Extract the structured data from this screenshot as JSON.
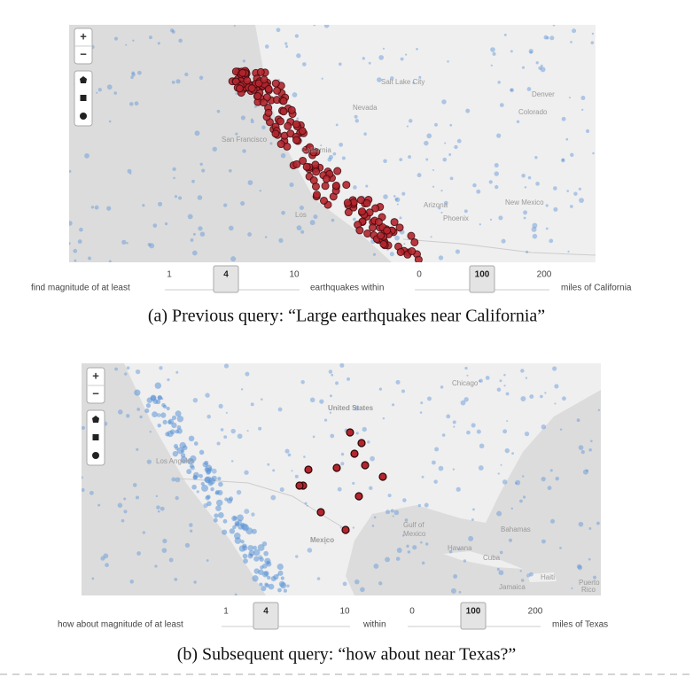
{
  "panels": [
    {
      "map": {
        "controls": [
          "+",
          "−"
        ],
        "labels": [
          "Salt Lake City",
          "Denver",
          "Colorado",
          "Nevada",
          "San Francisco",
          "California",
          "Arizona",
          "Phoenix",
          "New Mexico",
          "Los"
        ]
      },
      "query": {
        "parts": [
          "find magnitude of at least",
          "earthquakes within",
          "miles of California"
        ],
        "sliders": [
          {
            "min": 1,
            "value": 4,
            "max": 10
          },
          {
            "min": 0,
            "value": 100,
            "max": 200
          }
        ]
      },
      "caption": "(a) Previous query: “Large earthquakes near California”"
    },
    {
      "map": {
        "controls": [
          "+",
          "−"
        ],
        "labels": [
          "Chicago",
          "United States",
          "Los Angeles",
          "Gulf of",
          "Mexico",
          "Mexico",
          "Havana",
          "Cuba",
          "Bahamas",
          "Jamaica",
          "Haiti",
          "Puerto",
          "Rico"
        ]
      },
      "query": {
        "parts": [
          "how about magnitude of at least",
          "within",
          "miles of Texas"
        ],
        "sliders": [
          {
            "min": 1,
            "value": 4,
            "max": 10
          },
          {
            "min": 0,
            "value": 100,
            "max": 200
          }
        ]
      },
      "caption": "(b) Subsequent query: “how about near Texas?”"
    }
  ]
}
